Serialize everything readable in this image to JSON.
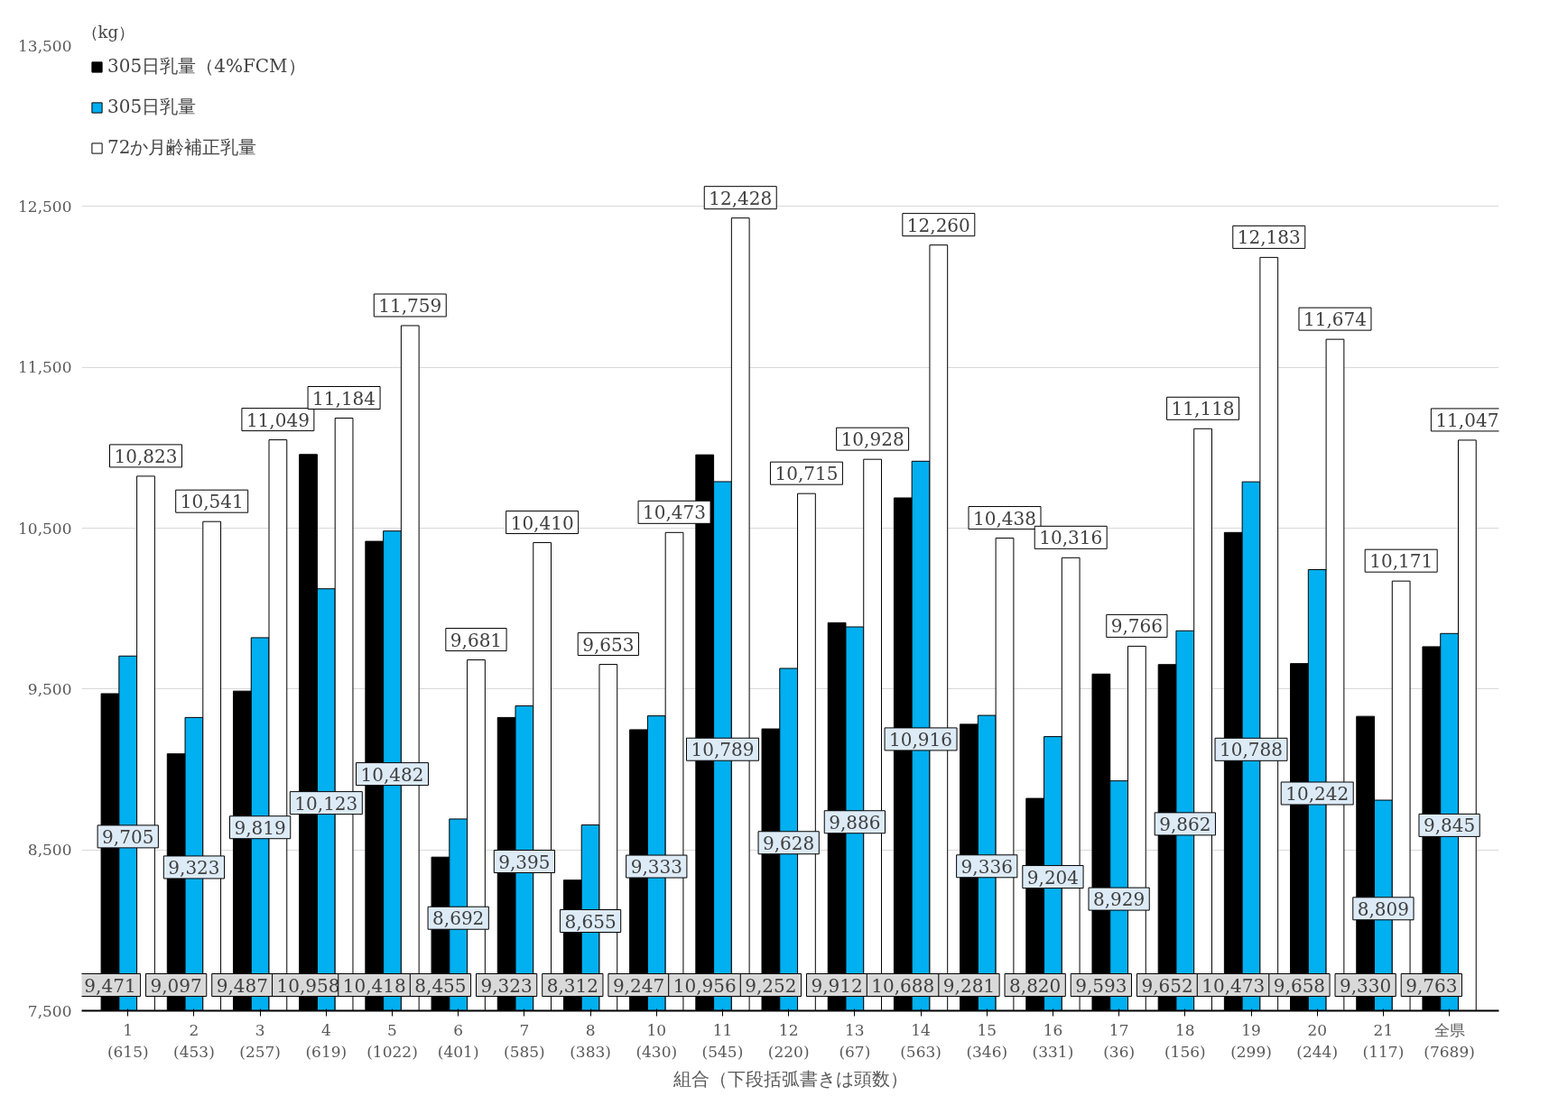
{
  "chart_data": {
    "type": "bar",
    "ylabel": "（kg）",
    "xlabel": "組合（下段括弧書きは頭数）",
    "categories": [
      "1\n(615)",
      "2\n(453)",
      "3\n(257)",
      "4\n(619)",
      "5\n(1022)",
      "6\n(401)",
      "7\n(585)",
      "8\n(383)",
      "10\n(430)",
      "11\n(545)",
      "12\n(220)",
      "13\n(67)",
      "14\n(563)",
      "15\n(346)",
      "16\n(331)",
      "17\n(36)",
      "18\n(156)",
      "19\n(299)",
      "20\n(244)",
      "21\n(117)",
      "全県\n(7689)"
    ],
    "series": [
      {
        "name": "305日乳量（4%FCM）",
        "color": "#000000",
        "values": [
          9471,
          9097,
          9487,
          10958,
          10418,
          8455,
          9323,
          8312,
          9247,
          10956,
          9252,
          9912,
          10688,
          9281,
          8820,
          9593,
          9652,
          10473,
          9658,
          9330,
          9763
        ],
        "value_labels": [
          "9,471",
          "9,097",
          "9,487",
          "10,958",
          "10,418",
          "8,455",
          "9,323",
          "8,312",
          "9,247",
          "10,956",
          "9,252",
          "9,912",
          "10,688",
          "9,281",
          "8,820",
          "9,593",
          "9,652",
          "10,473",
          "9,658",
          "9,330",
          "9,763"
        ]
      },
      {
        "name": "305日乳量",
        "color": "#00b0f0",
        "values": [
          9705,
          9323,
          9819,
          10123,
          10482,
          8692,
          9395,
          8655,
          9333,
          10789,
          9628,
          9886,
          10916,
          9336,
          9204,
          8929,
          9862,
          10788,
          10242,
          8809,
          9845
        ],
        "value_labels": [
          "9,705",
          "9,323",
          "9,819",
          "10,123",
          "10,482",
          "8,692",
          "9,395",
          "8,655",
          "9,333",
          "10,789",
          "9,628",
          "9,886",
          "10,916",
          "9,336",
          "9,204",
          "8,929",
          "9,862",
          "10,788",
          "10,242",
          "8,809",
          "9,845"
        ]
      },
      {
        "name": "72か月齢補正乳量",
        "color": "#ffffff",
        "values": [
          10823,
          10541,
          11049,
          11184,
          11759,
          9681,
          10410,
          9653,
          10473,
          12428,
          10715,
          10928,
          12260,
          10438,
          10316,
          9766,
          11118,
          12183,
          11674,
          10171,
          11047
        ],
        "value_labels": [
          "10,823",
          "10,541",
          "11,049",
          "11,184",
          "11,759",
          "9,681",
          "10,410",
          "9,653",
          "10,473",
          "12,428",
          "10,715",
          "10,928",
          "12,260",
          "10,438",
          "10,316",
          "9,766",
          "11,118",
          "12,183",
          "11,674",
          "10,171",
          "11,047"
        ]
      }
    ],
    "ylim": [
      7500,
      13500
    ],
    "yticks": [
      {
        "value": 7500,
        "label": "7,500"
      },
      {
        "value": 8500,
        "label": "8,500"
      },
      {
        "value": 9500,
        "label": "9,500"
      },
      {
        "value": 10500,
        "label": "10,500"
      },
      {
        "value": 11500,
        "label": "11,500"
      },
      {
        "value": 12500,
        "label": "12,500"
      },
      {
        "value": 13500,
        "label": "13,500"
      }
    ],
    "grid": "y",
    "legend": "top left"
  }
}
